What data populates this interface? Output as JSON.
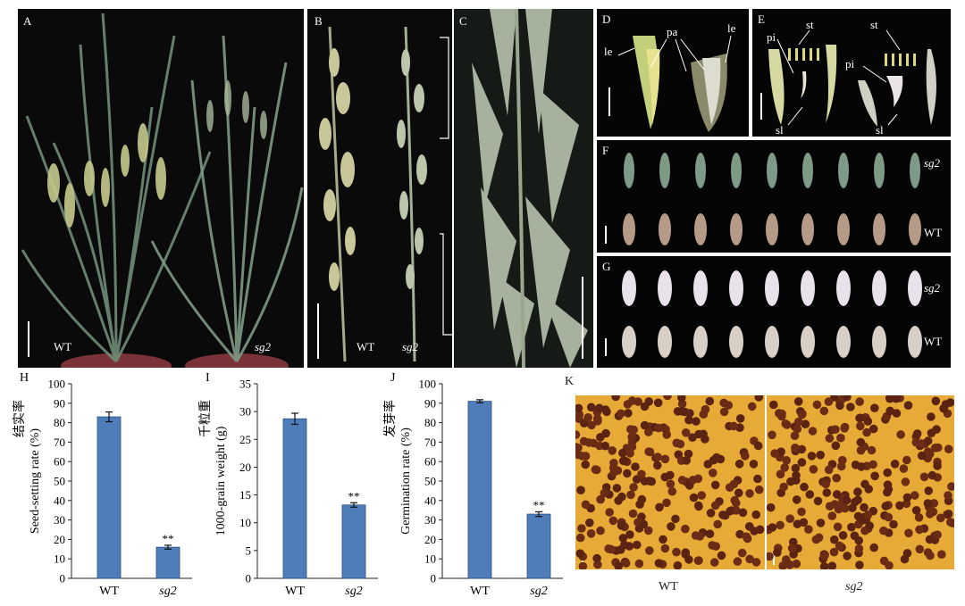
{
  "figure": {
    "panel_letters": [
      "A",
      "B",
      "C",
      "D",
      "E",
      "F",
      "G",
      "H",
      "I",
      "J",
      "K"
    ],
    "genotypes": {
      "wt": "WT",
      "mutant": "sg2"
    },
    "panel_d_labels": {
      "lemma": "le",
      "palea": "pa"
    },
    "panel_e_labels": {
      "stamen": "st",
      "pistil": "pi",
      "lodicule": "sl"
    }
  },
  "charts": [
    {
      "id": "H",
      "letter": "H",
      "ylabel_cn": "结实率",
      "ylabel_en": "Seed-setting rate (%)",
      "yticks": [
        "0",
        "10",
        "20",
        "30",
        "40",
        "50",
        "60",
        "70",
        "80",
        "90",
        "100"
      ],
      "categories": [
        "WT",
        "sg2"
      ],
      "sig": "**"
    },
    {
      "id": "I",
      "letter": "I",
      "ylabel_cn": "千粒重",
      "ylabel_en": "1000-grain weight (g)",
      "yticks": [
        "0",
        "5",
        "10",
        "15",
        "20",
        "25",
        "30",
        "35"
      ],
      "categories": [
        "WT",
        "sg2"
      ],
      "sig": "**"
    },
    {
      "id": "J",
      "letter": "J",
      "ylabel_cn": "发芽率",
      "ylabel_en": "Germination rate (%)",
      "yticks": [
        "0",
        "10",
        "20",
        "30",
        "40",
        "50",
        "60",
        "70",
        "80",
        "90",
        "100"
      ],
      "categories": [
        "WT",
        "sg2"
      ],
      "sig": "**"
    }
  ],
  "chart_data": [
    {
      "type": "bar",
      "title": "",
      "xlabel": "",
      "ylabel": "Seed-setting rate (%)",
      "categories": [
        "WT",
        "sg2"
      ],
      "values": [
        83,
        16
      ],
      "errors": [
        2.5,
        1
      ],
      "ylim": [
        0,
        100
      ],
      "bar_color": "#4f7dba",
      "grid": false,
      "legend": "none"
    },
    {
      "type": "bar",
      "title": "",
      "xlabel": "",
      "ylabel": "1000-grain weight (g)",
      "categories": [
        "WT",
        "sg2"
      ],
      "values": [
        28.7,
        13.2
      ],
      "errors": [
        1,
        0.4
      ],
      "ylim": [
        0,
        35
      ],
      "bar_color": "#4f7dba",
      "grid": false,
      "legend": "none"
    },
    {
      "type": "bar",
      "title": "",
      "xlabel": "",
      "ylabel": "Germination rate (%)",
      "categories": [
        "WT",
        "sg2"
      ],
      "values": [
        91,
        33
      ],
      "errors": [
        0.8,
        1.2
      ],
      "ylim": [
        0,
        100
      ],
      "bar_color": "#4f7dba",
      "grid": false,
      "legend": "none"
    }
  ]
}
